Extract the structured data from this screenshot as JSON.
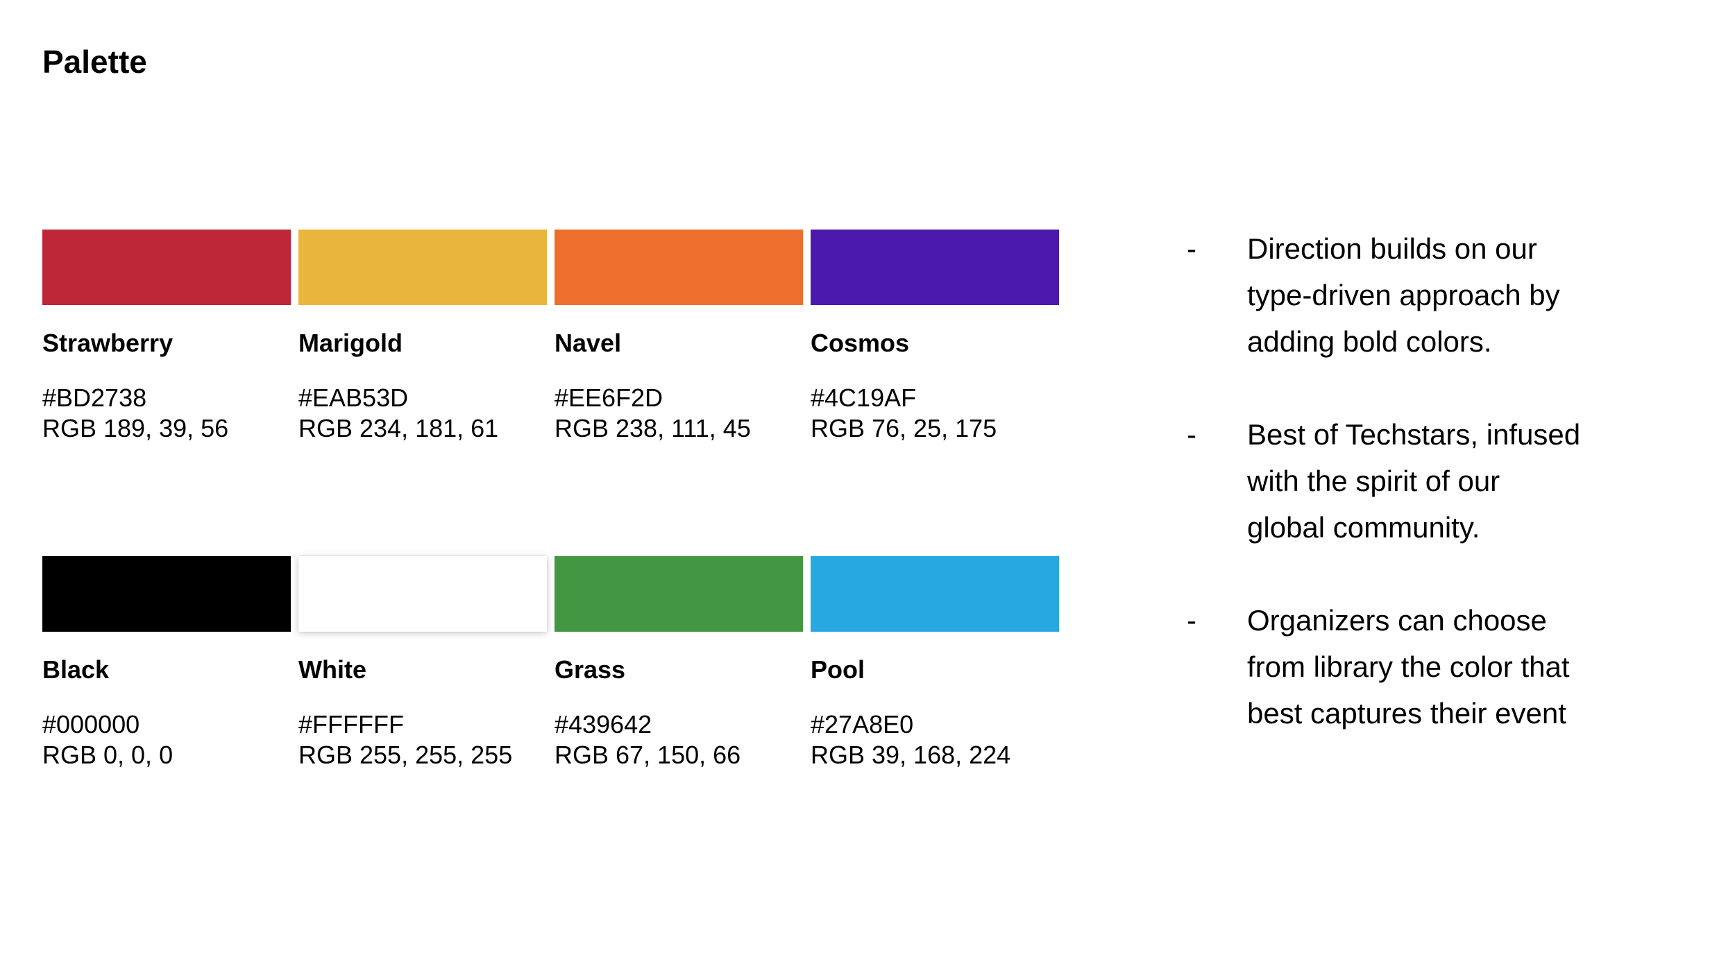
{
  "page": {
    "title": "Palette",
    "background": "#FFFFFF",
    "text_color": "#000000"
  },
  "palette": {
    "rows": [
      [
        {
          "name": "Strawberry",
          "hex": "#BD2738",
          "rgb": "RGB 189, 39, 56"
        },
        {
          "name": "Marigold",
          "hex": "#EAB53D",
          "rgb": "RGB 234, 181, 61"
        },
        {
          "name": "Navel",
          "hex": "#EE6F2D",
          "rgb": "RGB 238, 111, 45"
        },
        {
          "name": "Cosmos",
          "hex": "#4C19AF",
          "rgb": "RGB 76, 25, 175"
        }
      ],
      [
        {
          "name": "Black",
          "hex": "#000000",
          "rgb": "RGB 0, 0, 0"
        },
        {
          "name": "White",
          "hex": "#FFFFFF",
          "rgb": "RGB 255, 255, 255"
        },
        {
          "name": "Grass",
          "hex": "#439642",
          "rgb": "RGB 67, 150, 66"
        },
        {
          "name": "Pool",
          "hex": "#27A8E0",
          "rgb": "RGB 39, 168, 224"
        }
      ]
    ]
  },
  "notes": {
    "bullet_marker": "-",
    "items": [
      {
        "text": "Direction builds on our\ntype-driven approach by\nadding bold colors."
      },
      {
        "text": "Best of Techstars, infused\nwith the spirit of our\nglobal community."
      },
      {
        "text": "Organizers can choose\nfrom library the color that\nbest captures their event"
      }
    ]
  }
}
